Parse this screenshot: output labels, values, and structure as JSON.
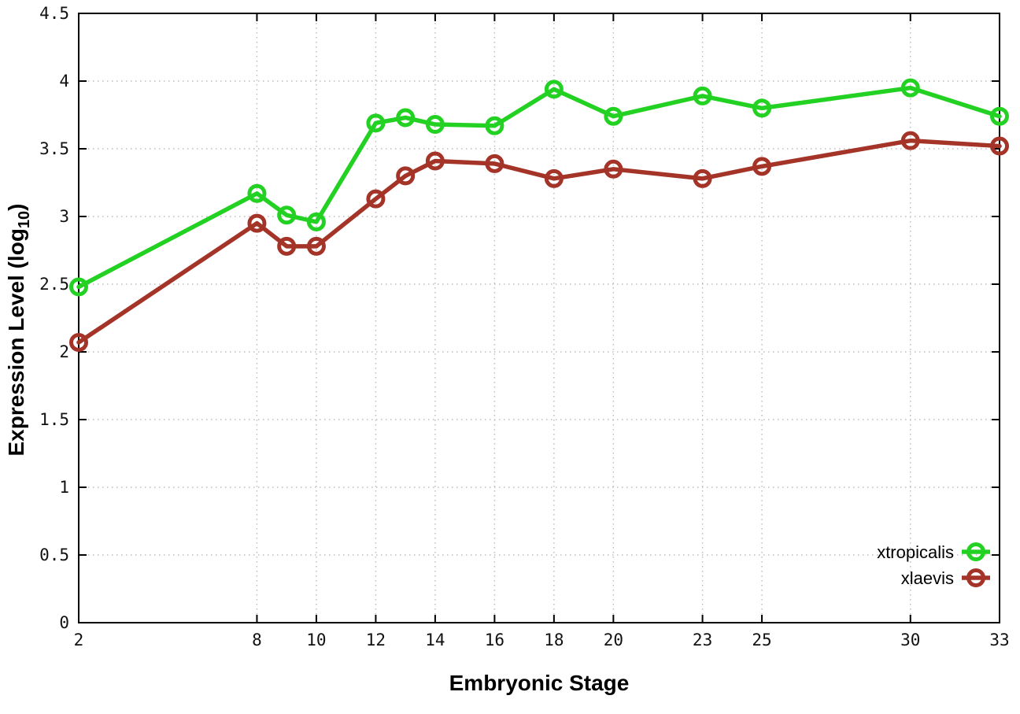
{
  "chart_data": {
    "type": "line",
    "title": "",
    "xlabel": "Embryonic Stage",
    "ylabel": "Expression Level (log10)",
    "ylabel_parts": {
      "main": "Expression Level (log",
      "sub": "10",
      "end": ")"
    },
    "x": [
      2,
      8,
      9,
      10,
      12,
      13,
      14,
      16,
      18,
      20,
      23,
      25,
      30,
      33
    ],
    "series": [
      {
        "name": "xtropicalis",
        "color": "#23d123",
        "values": [
          2.48,
          3.17,
          3.01,
          2.96,
          3.69,
          3.73,
          3.68,
          3.67,
          3.94,
          3.74,
          3.89,
          3.8,
          3.95,
          3.74
        ]
      },
      {
        "name": "xlaevis",
        "color": "#a43328",
        "values": [
          2.07,
          2.95,
          2.78,
          2.78,
          3.13,
          3.3,
          3.41,
          3.39,
          3.28,
          3.35,
          3.28,
          3.37,
          3.56,
          3.52
        ]
      }
    ],
    "xlim": [
      2,
      33
    ],
    "ylim": [
      0,
      4.5
    ],
    "xticks": {
      "values": [
        2,
        8,
        10,
        12,
        14,
        16,
        18,
        20,
        23,
        25,
        30,
        33
      ],
      "labels": [
        "2",
        "8",
        "10",
        "12",
        "14",
        "16",
        "18",
        "20",
        "23",
        "25",
        "30",
        "33"
      ]
    },
    "yticks": {
      "values": [
        0,
        0.5,
        1,
        1.5,
        2,
        2.5,
        3,
        3.5,
        4,
        4.5
      ],
      "labels": [
        "0",
        "0.5",
        "1",
        "1.5",
        "2",
        "2.5",
        "3",
        "3.5",
        "4",
        "4.5"
      ]
    },
    "grid": "dotted",
    "marker": "open-circle",
    "legend": {
      "position": "bottom-right",
      "entries": [
        "xtropicalis",
        "xlaevis"
      ]
    },
    "colors": {
      "axis": "#000000",
      "grid": "#bdbdbd",
      "text": "#111111"
    }
  }
}
